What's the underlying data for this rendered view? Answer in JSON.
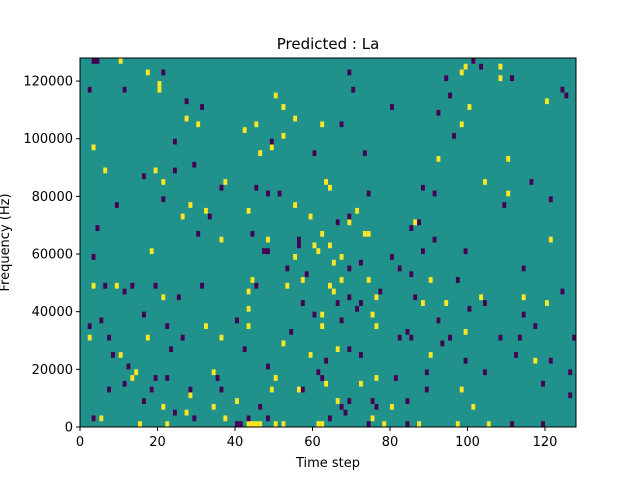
{
  "chart_data": {
    "type": "heatmap",
    "title": "Predicted : La",
    "xlabel": "Time step",
    "ylabel": "Frequency (Hz)",
    "xlim": [
      0,
      128
    ],
    "ylim": [
      0,
      128000
    ],
    "xticks": [
      0,
      20,
      40,
      60,
      80,
      100,
      120
    ],
    "xtick_labels": [
      "0",
      "20",
      "40",
      "60",
      "80",
      "100",
      "120"
    ],
    "yticks": [
      0,
      20000,
      40000,
      60000,
      80000,
      100000,
      120000
    ],
    "ytick_labels": [
      "0",
      "20000",
      "40000",
      "60000",
      "80000",
      "100000",
      "120000"
    ],
    "grid": false,
    "colormap": "viridis",
    "colors": {
      "background": "#21918c",
      "high": "#fde725",
      "low": "#440154"
    },
    "cell_height_hz": 2000,
    "high_cells": [
      [
        10,
        126000
      ],
      [
        99,
        124000
      ],
      [
        108,
        124000
      ],
      [
        17,
        122000
      ],
      [
        98,
        122000
      ],
      [
        20,
        118000
      ],
      [
        108,
        120000
      ],
      [
        20,
        116000
      ],
      [
        50,
        114000
      ],
      [
        120,
        112000
      ],
      [
        52,
        110000
      ],
      [
        100,
        110000
      ],
      [
        27,
        106000
      ],
      [
        55,
        106000
      ],
      [
        30,
        104000
      ],
      [
        45,
        104000
      ],
      [
        62,
        104000
      ],
      [
        98,
        104000
      ],
      [
        42,
        102000
      ],
      [
        52,
        100000
      ],
      [
        3,
        96000
      ],
      [
        49,
        96000
      ],
      [
        46,
        94000
      ],
      [
        92,
        92000
      ],
      [
        110,
        92000
      ],
      [
        6,
        88000
      ],
      [
        19,
        88000
      ],
      [
        37,
        84000
      ],
      [
        21,
        84000
      ],
      [
        104,
        84000
      ],
      [
        63,
        84000
      ],
      [
        64,
        82000
      ],
      [
        110,
        80000
      ],
      [
        28,
        76000
      ],
      [
        55,
        76000
      ],
      [
        32,
        74000
      ],
      [
        43,
        74000
      ],
      [
        71,
        74000
      ],
      [
        26,
        72000
      ],
      [
        59,
        72000
      ],
      [
        69,
        70000
      ],
      [
        86,
        70000
      ],
      [
        73,
        66000
      ],
      [
        74,
        66000
      ],
      [
        62,
        66000
      ],
      [
        36,
        64000
      ],
      [
        48,
        64000
      ],
      [
        121,
        64000
      ],
      [
        60,
        62000
      ],
      [
        64,
        62000
      ],
      [
        18,
        60000
      ],
      [
        61,
        60000
      ],
      [
        55,
        58000
      ],
      [
        67,
        58000
      ],
      [
        65,
        56000
      ],
      [
        44,
        50000
      ],
      [
        57,
        50000
      ],
      [
        67,
        50000
      ],
      [
        74,
        50000
      ],
      [
        90,
        50000
      ],
      [
        3,
        48000
      ],
      [
        9,
        48000
      ],
      [
        53,
        48000
      ],
      [
        64,
        48000
      ],
      [
        65,
        46000
      ],
      [
        43,
        46000
      ],
      [
        21,
        44000
      ],
      [
        76,
        44000
      ],
      [
        103,
        44000
      ],
      [
        114,
        44000
      ],
      [
        88,
        42000
      ],
      [
        94,
        42000
      ],
      [
        120,
        42000
      ],
      [
        43,
        40000
      ],
      [
        62,
        38000
      ],
      [
        75,
        38000
      ],
      [
        32,
        34000
      ],
      [
        62,
        34000
      ],
      [
        43,
        34000
      ],
      [
        76,
        34000
      ],
      [
        99,
        32000
      ],
      [
        2,
        30000
      ],
      [
        17,
        30000
      ],
      [
        36,
        30000
      ],
      [
        52,
        28000
      ],
      [
        66,
        26000
      ],
      [
        10,
        24000
      ],
      [
        59,
        24000
      ],
      [
        90,
        24000
      ],
      [
        117,
        22000
      ],
      [
        14,
        18000
      ],
      [
        34,
        18000
      ],
      [
        63,
        14000
      ],
      [
        72,
        14000
      ],
      [
        13,
        16000
      ],
      [
        50,
        16000
      ],
      [
        76,
        16000
      ],
      [
        49,
        12000
      ],
      [
        56,
        12000
      ],
      [
        98,
        12000
      ],
      [
        40,
        8000
      ],
      [
        66,
        8000
      ],
      [
        21,
        6000
      ],
      [
        101,
        6000
      ],
      [
        27,
        4000
      ],
      [
        5,
        2000
      ],
      [
        15,
        0
      ],
      [
        22,
        0
      ],
      [
        43,
        0
      ],
      [
        44,
        0
      ],
      [
        45,
        0
      ],
      [
        46,
        0
      ],
      [
        50,
        0
      ],
      [
        52,
        0
      ],
      [
        61,
        0
      ],
      [
        62,
        0
      ],
      [
        78,
        0
      ],
      [
        87,
        0
      ],
      [
        97,
        0
      ],
      [
        105,
        0
      ],
      [
        37,
        2000
      ],
      [
        75,
        2000
      ],
      [
        28,
        10000
      ],
      [
        34,
        6000
      ],
      [
        80,
        6000
      ]
    ],
    "low_cells": [
      [
        3,
        126000
      ],
      [
        4,
        126000
      ],
      [
        101,
        126000
      ],
      [
        103,
        124000
      ],
      [
        21,
        122000
      ],
      [
        69,
        122000
      ],
      [
        94,
        120000
      ],
      [
        111,
        120000
      ],
      [
        2,
        116000
      ],
      [
        11,
        116000
      ],
      [
        70,
        116000
      ],
      [
        124,
        116000
      ],
      [
        125,
        114000
      ],
      [
        95,
        114000
      ],
      [
        27,
        112000
      ],
      [
        31,
        110000
      ],
      [
        80,
        110000
      ],
      [
        92,
        108000
      ],
      [
        67,
        104000
      ],
      [
        96,
        100000
      ],
      [
        24,
        98000
      ],
      [
        49,
        98000
      ],
      [
        60,
        94000
      ],
      [
        73,
        94000
      ],
      [
        29,
        90000
      ],
      [
        24,
        88000
      ],
      [
        16,
        86000
      ],
      [
        116,
        84000
      ],
      [
        36,
        82000
      ],
      [
        45,
        82000
      ],
      [
        48,
        80000
      ],
      [
        51,
        80000
      ],
      [
        74,
        80000
      ],
      [
        88,
        82000
      ],
      [
        91,
        80000
      ],
      [
        9,
        76000
      ],
      [
        109,
        76000
      ],
      [
        121,
        78000
      ],
      [
        21,
        78000
      ],
      [
        33,
        72000
      ],
      [
        69,
        72000
      ],
      [
        66,
        70000
      ],
      [
        87,
        70000
      ],
      [
        4,
        68000
      ],
      [
        30,
        66000
      ],
      [
        44,
        66000
      ],
      [
        85,
        68000
      ],
      [
        56,
        64000
      ],
      [
        91,
        64000
      ],
      [
        56,
        62000
      ],
      [
        47,
        60000
      ],
      [
        48,
        60000
      ],
      [
        88,
        60000
      ],
      [
        99,
        60000
      ],
      [
        3,
        58000
      ],
      [
        80,
        58000
      ],
      [
        72,
        56000
      ],
      [
        82,
        54000
      ],
      [
        58,
        52000
      ],
      [
        85,
        52000
      ],
      [
        53,
        54000
      ],
      [
        69,
        54000
      ],
      [
        114,
        54000
      ],
      [
        6,
        48000
      ],
      [
        13,
        48000
      ],
      [
        19,
        48000
      ],
      [
        31,
        48000
      ],
      [
        45,
        48000
      ],
      [
        11,
        46000
      ],
      [
        25,
        44000
      ],
      [
        97,
        50000
      ],
      [
        69,
        44000
      ],
      [
        124,
        46000
      ],
      [
        77,
        46000
      ],
      [
        86,
        44000
      ],
      [
        104,
        42000
      ],
      [
        57,
        42000
      ],
      [
        66,
        42000
      ],
      [
        72,
        42000
      ],
      [
        16,
        38000
      ],
      [
        71,
        40000
      ],
      [
        100,
        40000
      ],
      [
        60,
        38000
      ],
      [
        5,
        36000
      ],
      [
        40,
        36000
      ],
      [
        67,
        36000
      ],
      [
        92,
        36000
      ],
      [
        114,
        38000
      ],
      [
        2,
        34000
      ],
      [
        22,
        34000
      ],
      [
        54,
        32000
      ],
      [
        84,
        32000
      ],
      [
        117,
        34000
      ],
      [
        7,
        30000
      ],
      [
        26,
        30000
      ],
      [
        82,
        30000
      ],
      [
        85,
        30000
      ],
      [
        95,
        30000
      ],
      [
        108,
        30000
      ],
      [
        113,
        30000
      ],
      [
        69,
        26000
      ],
      [
        93,
        28000
      ],
      [
        127,
        30000
      ],
      [
        23,
        26000
      ],
      [
        42,
        26000
      ],
      [
        8,
        24000
      ],
      [
        63,
        22000
      ],
      [
        72,
        24000
      ],
      [
        99,
        22000
      ],
      [
        112,
        24000
      ],
      [
        121,
        22000
      ],
      [
        12,
        20000
      ],
      [
        48,
        20000
      ],
      [
        61,
        18000
      ],
      [
        89,
        18000
      ],
      [
        104,
        18000
      ],
      [
        126,
        18000
      ],
      [
        11,
        14000
      ],
      [
        19,
        16000
      ],
      [
        22,
        16000
      ],
      [
        35,
        16000
      ],
      [
        62,
        16000
      ],
      [
        81,
        16000
      ],
      [
        119,
        14000
      ],
      [
        7,
        12000
      ],
      [
        18,
        12000
      ],
      [
        28,
        12000
      ],
      [
        36,
        12000
      ],
      [
        57,
        12000
      ],
      [
        89,
        12000
      ],
      [
        16,
        8000
      ],
      [
        69,
        8000
      ],
      [
        75,
        8000
      ],
      [
        84,
        8000
      ],
      [
        46,
        6000
      ],
      [
        67,
        6000
      ],
      [
        126,
        10000
      ],
      [
        3,
        2000
      ],
      [
        24,
        4000
      ],
      [
        40,
        0
      ],
      [
        41,
        0
      ],
      [
        43,
        2000
      ],
      [
        48,
        2000
      ],
      [
        64,
        2000
      ],
      [
        68,
        4000
      ],
      [
        29,
        2000
      ],
      [
        74,
        0
      ],
      [
        84,
        0
      ],
      [
        111,
        0
      ],
      [
        119,
        0
      ],
      [
        76,
        6000
      ]
    ]
  }
}
